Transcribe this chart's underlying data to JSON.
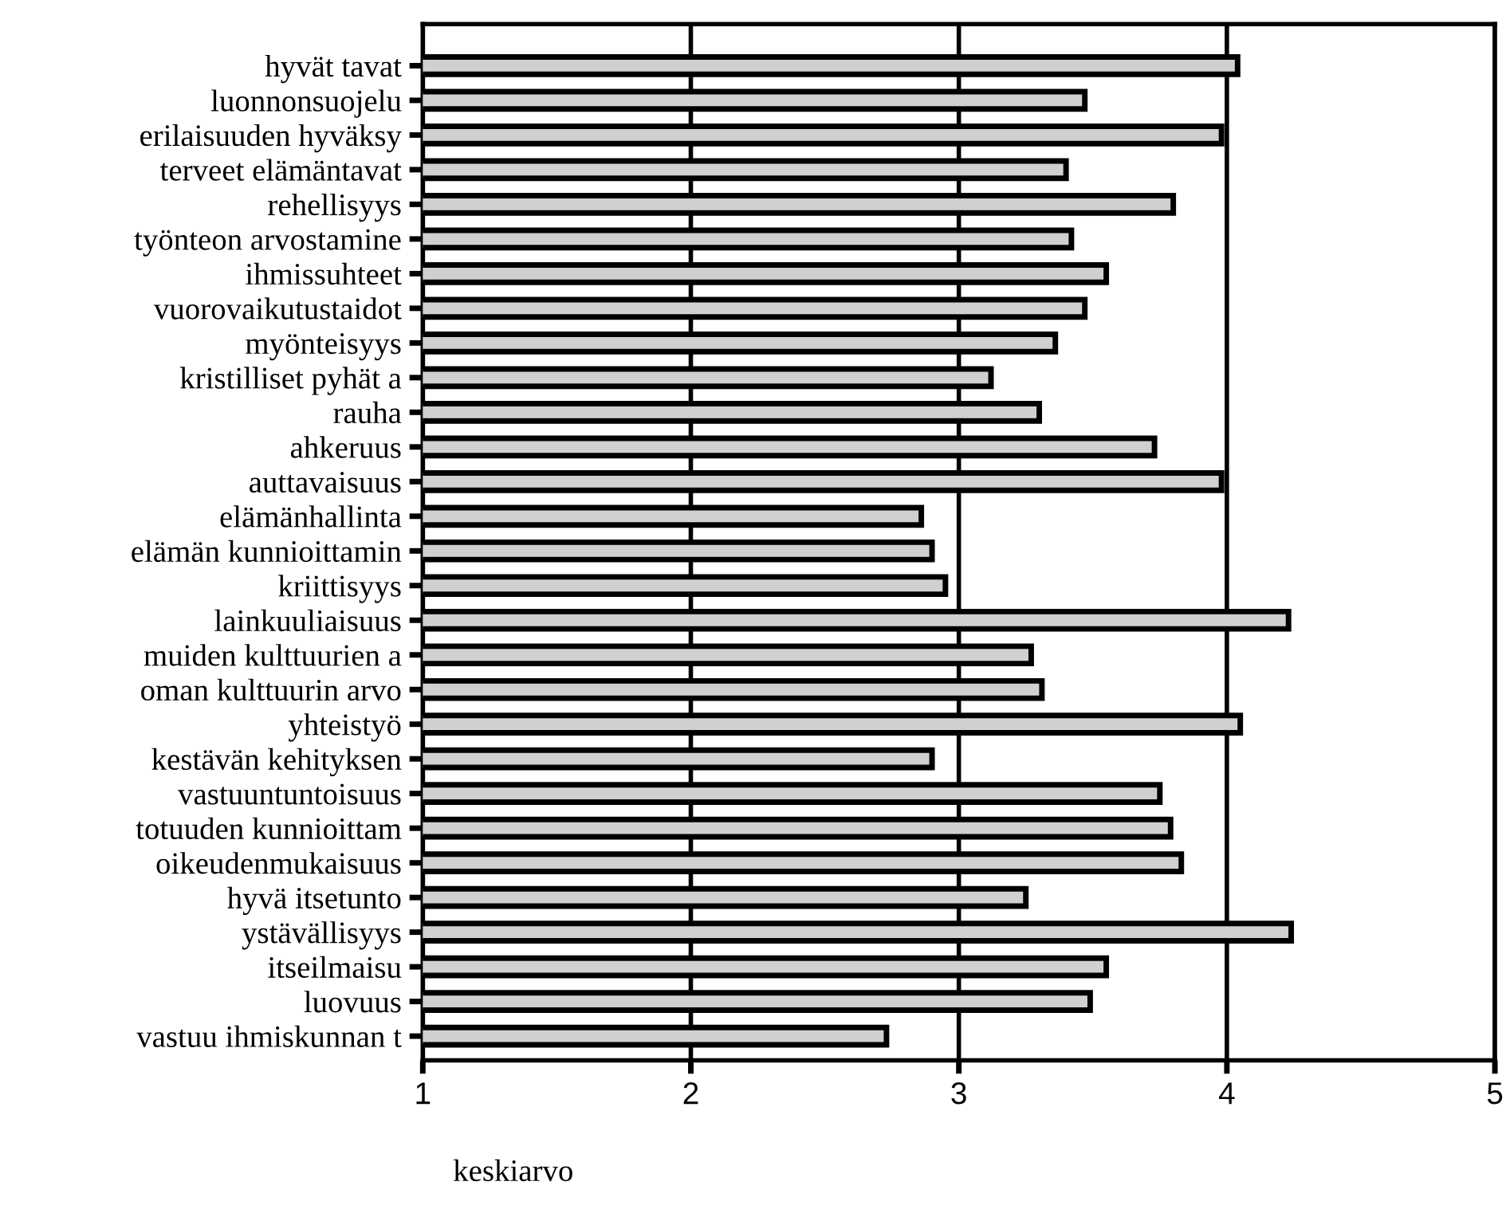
{
  "chart_data": {
    "type": "bar",
    "orientation": "horizontal",
    "xlabel": "keskiarvo",
    "categories": [
      "hyvät tavat",
      "luonnonsuojelu",
      "erilaisuuden hyväksy",
      "terveet elämäntavat",
      "rehellisyys",
      "työnteon arvostamine",
      "ihmissuhteet",
      "vuorovaikutustaidot",
      "myönteisyys",
      "kristilliset pyhät a",
      "rauha",
      "ahkeruus",
      "auttavaisuus",
      "elämänhallinta",
      "elämän kunnioittamin",
      "kriittisyys",
      "lainkuuliaisuus",
      "muiden kulttuurien a",
      "oman kulttuurin arvo",
      "yhteistyö",
      "kestävän kehityksen",
      "vastuuntuntoisuus",
      "totuuden kunnioittam",
      "oikeudenmukaisuus",
      "hyvä itsetunto",
      "ystävällisyys",
      "itseilmaisu",
      "luovuus",
      "vastuu ihmiskunnan t"
    ],
    "values": [
      4.04,
      3.47,
      3.98,
      3.4,
      3.8,
      3.42,
      3.55,
      3.47,
      3.36,
      3.12,
      3.3,
      3.73,
      3.98,
      2.86,
      2.9,
      2.95,
      4.23,
      3.27,
      3.31,
      4.05,
      2.9,
      3.75,
      3.79,
      3.83,
      3.25,
      4.24,
      3.55,
      3.49,
      2.73
    ],
    "color": "#d0d0d0",
    "xlim": [
      1,
      5
    ],
    "xticks": [
      1,
      2,
      3,
      4,
      5
    ],
    "grid": "x"
  }
}
